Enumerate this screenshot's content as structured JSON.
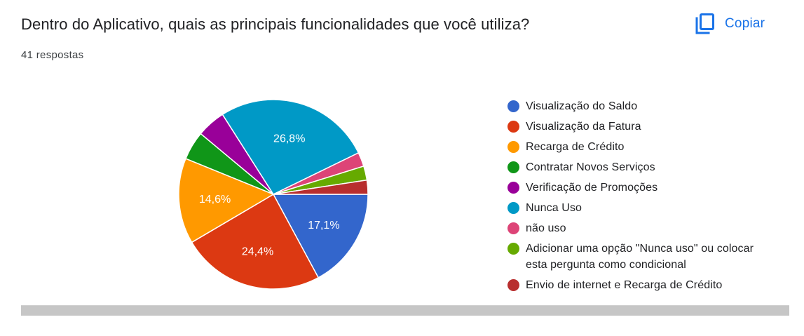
{
  "question": {
    "title": "Dentro do Aplicativo, quais as principais funcionalidades que você utiliza?",
    "responses": "41 respostas"
  },
  "copy": {
    "label": "Copiar",
    "icon": "copy-icon"
  },
  "chart_data": {
    "type": "pie",
    "slices": [
      {
        "label": "Visualização do Saldo",
        "value": 17.1,
        "color": "#3366cc",
        "display": "17,1%"
      },
      {
        "label": "Visualização da Fatura",
        "value": 24.4,
        "color": "#dc3912",
        "display": "24,4%"
      },
      {
        "label": "Recarga de Crédito",
        "value": 14.6,
        "color": "#ff9900",
        "display": "14,6%"
      },
      {
        "label": "Contratar Novos Serviços",
        "value": 4.9,
        "color": "#109618",
        "display": ""
      },
      {
        "label": "Verificação de Promoções",
        "value": 4.9,
        "color": "#990099",
        "display": ""
      },
      {
        "label": "Nunca Uso",
        "value": 26.8,
        "color": "#0099c6",
        "display": "26,8%"
      },
      {
        "label": "não uso",
        "value": 2.4,
        "color": "#dd4477",
        "display": ""
      },
      {
        "label": "Adicionar uma opção \"Nunca uso\" ou colocar esta pergunta como condicional",
        "value": 2.4,
        "color": "#66aa00",
        "display": ""
      },
      {
        "label": "Envio de internet e Recarga de Crédito",
        "value": 2.4,
        "color": "#b82e2e",
        "display": ""
      }
    ],
    "start": "3 o'clock, clockwise",
    "legend_position": "right"
  }
}
